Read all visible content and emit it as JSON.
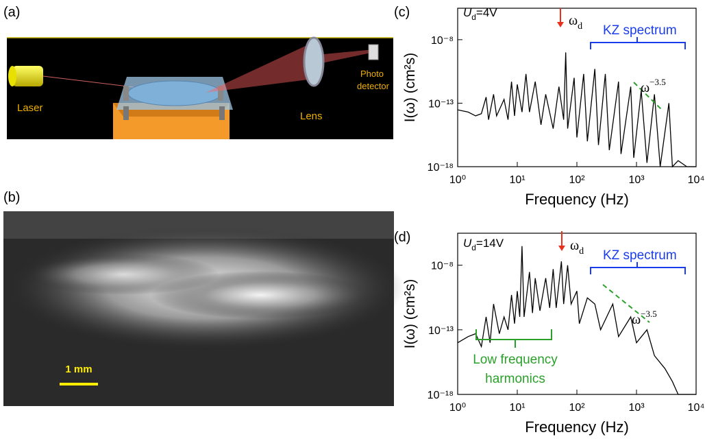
{
  "panel_a": {
    "label": "(a)",
    "laser": "Laser",
    "lens": "Lens",
    "detector": [
      "Photo",
      "detector"
    ]
  },
  "panel_b": {
    "label": "(b)",
    "scale_bar": "1 mm"
  },
  "chart_data": [
    {
      "type": "line",
      "panel_label": "(c)",
      "xlabel": "Frequency (Hz)",
      "ylabel": "I(ω) (cm²s)",
      "xlog": true,
      "ylog": true,
      "color": "#000000",
      "xlim": [
        1,
        10000
      ],
      "ylim": [
        1e-18,
        3e-06
      ],
      "xticks": [
        {
          "value": 1,
          "label": "10⁰"
        },
        {
          "value": 10,
          "label": "10¹"
        },
        {
          "value": 100,
          "label": "10²"
        },
        {
          "value": 1000,
          "label": "10³"
        },
        {
          "value": 10000,
          "label": "10⁴"
        }
      ],
      "yticks": [
        {
          "value": 1e-18,
          "label": "10⁻¹⁸"
        },
        {
          "value": 1e-13,
          "label": "10⁻¹³"
        },
        {
          "value": 1e-08,
          "label": "10⁻⁸"
        }
      ],
      "x": [
        1,
        1.5,
        2,
        2.5,
        3,
        3.3,
        4,
        4.5,
        5,
        6,
        7,
        8,
        9,
        10,
        12,
        14,
        16,
        20,
        25,
        30,
        40,
        50,
        60,
        65,
        70,
        90,
        100,
        130,
        150,
        200,
        230,
        300,
        350,
        500,
        550,
        800,
        900,
        1200,
        1500,
        2000,
        2500,
        3500,
        4000,
        5000,
        7000,
        10000
      ],
      "values": [
        3e-14,
        2e-14,
        1e-14,
        1.5e-14,
        3e-13,
        5e-15,
        5e-13,
        1e-14,
        3e-14,
        2e-13,
        5e-15,
        5e-12,
        1e-14,
        3e-12,
        2e-14,
        2e-11,
        2e-14,
        5e-12,
        2e-15,
        5e-13,
        1e-15,
        2e-12,
        5e-15,
        1e-09,
        1e-15,
        1e-11,
        2e-16,
        2e-11,
        1e-16,
        5e-11,
        5e-17,
        2e-11,
        2e-17,
        5e-12,
        1e-17,
        2e-12,
        5e-18,
        1e-12,
        2e-18,
        5e-13,
        1e-18,
        1e-13,
        1e-18,
        3e-18,
        1e-18,
        1e-18
      ],
      "annotations": {
        "drive": {
          "symbol": "U",
          "subscript": "d",
          "text": "=4V"
        },
        "omega_d": {
          "symbol": "ω",
          "subscript": "d"
        },
        "kz": "KZ spectrum",
        "slope": {
          "symbol": "ω",
          "superscript": "−3.5"
        }
      }
    },
    {
      "type": "line",
      "panel_label": "(d)",
      "xlabel": "Frequency (Hz)",
      "ylabel": "I(ω) (cm²s)",
      "xlog": true,
      "ylog": true,
      "color": "#000000",
      "xlim": [
        1,
        10000
      ],
      "ylim": [
        1e-18,
        3e-06
      ],
      "xticks": [
        {
          "value": 1,
          "label": "10⁰"
        },
        {
          "value": 10,
          "label": "10¹"
        },
        {
          "value": 100,
          "label": "10²"
        },
        {
          "value": 1000,
          "label": "10³"
        },
        {
          "value": 10000,
          "label": "10⁴"
        }
      ],
      "yticks": [
        {
          "value": 1e-18,
          "label": "10⁻¹⁸"
        },
        {
          "value": 1e-13,
          "label": "10⁻¹³"
        },
        {
          "value": 1e-08,
          "label": "10⁻⁸"
        }
      ],
      "x": [
        1,
        1.5,
        2,
        2.5,
        3,
        3.5,
        4,
        5,
        6,
        7,
        8,
        9,
        10,
        11,
        12,
        13,
        16,
        18,
        20,
        24,
        30,
        35,
        40,
        45,
        55,
        60,
        70,
        80,
        100,
        110,
        150,
        200,
        250,
        400,
        500,
        800,
        1000,
        1500,
        2000,
        3000,
        4000,
        5000,
        10000
      ],
      "values": [
        1e-14,
        3e-14,
        5e-14,
        5e-15,
        1e-12,
        1e-14,
        1e-11,
        5e-14,
        1e-12,
        1e-13,
        5e-11,
        3e-13,
        1e-10,
        1e-12,
        3e-07,
        1e-12,
        3e-09,
        2e-12,
        1e-09,
        3e-12,
        1e-09,
        5e-12,
        5e-09,
        5e-12,
        2e-08,
        1e-11,
        1e-08,
        1e-11,
        1e-10,
        3e-13,
        3e-11,
        1e-11,
        1e-13,
        1e-11,
        3e-14,
        1e-12,
        1e-14,
        1e-13,
        1e-15,
        1e-16,
        1e-17,
        1e-18,
        1e-18
      ],
      "annotations": {
        "drive": {
          "symbol": "U",
          "subscript": "d",
          "text": "=14V"
        },
        "omega_d": {
          "symbol": "ω",
          "subscript": "d"
        },
        "kz": "KZ spectrum",
        "slope": {
          "symbol": "ω",
          "superscript": "−3.5"
        },
        "harmonics": [
          "Low frequency",
          "harmonics"
        ]
      }
    }
  ]
}
